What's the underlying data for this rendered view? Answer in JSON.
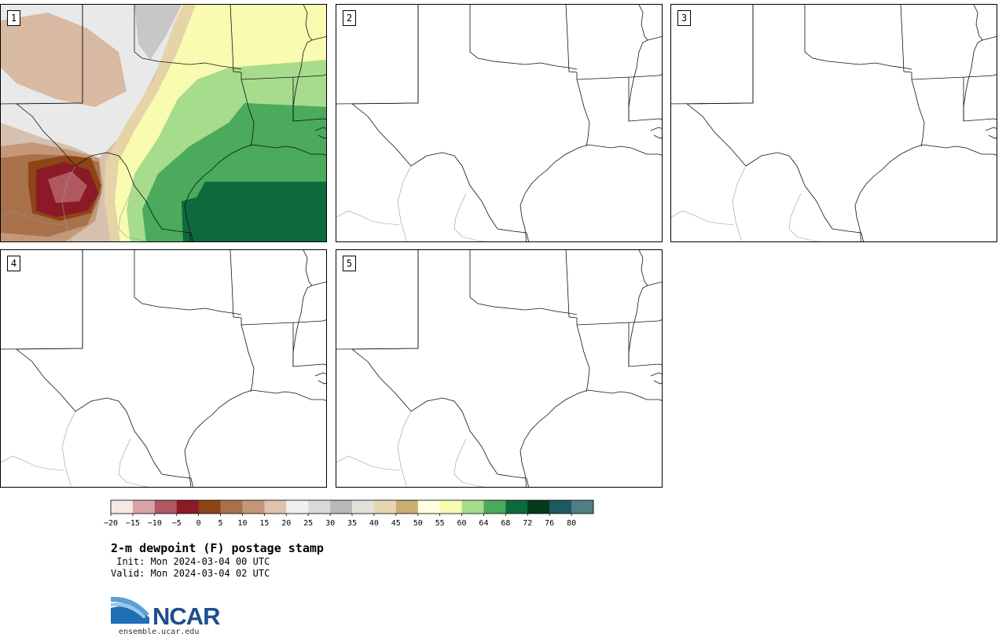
{
  "panels": [
    {
      "label": "1",
      "filled": true
    },
    {
      "label": "2",
      "filled": false
    },
    {
      "label": "3",
      "filled": false
    },
    {
      "label": "4",
      "filled": false
    },
    {
      "label": "5",
      "filled": false
    }
  ],
  "colorbar": {
    "ticks": [
      "−20",
      "−15",
      "−10",
      "−5",
      "0",
      "5",
      "10",
      "15",
      "20",
      "25",
      "30",
      "35",
      "40",
      "45",
      "50",
      "55",
      "60",
      "64",
      "68",
      "72",
      "76",
      "80"
    ],
    "colors": [
      "#f5e9e6",
      "#d6a3a6",
      "#b0585f",
      "#8b1a27",
      "#8e4416",
      "#a8714c",
      "#c49779",
      "#dec3b0",
      "#f0f0f0",
      "#d9d9d9",
      "#b9b9b9",
      "#e2e2d8",
      "#e5d6b2",
      "#c9ac72",
      "#fffee0",
      "#f8fbb0",
      "#a6dc8c",
      "#4baa5c",
      "#0d6a3c",
      "#053a1c",
      "#1f5a62",
      "#4f7f84"
    ]
  },
  "footer": {
    "title": "2-m dewpoint (F) postage stamp",
    "init": " Init: Mon 2024-03-04 00 UTC",
    "valid": "Valid: Mon 2024-03-04 02 UTC",
    "logo_text": "NCAR",
    "site": "ensemble.ucar.edu"
  }
}
